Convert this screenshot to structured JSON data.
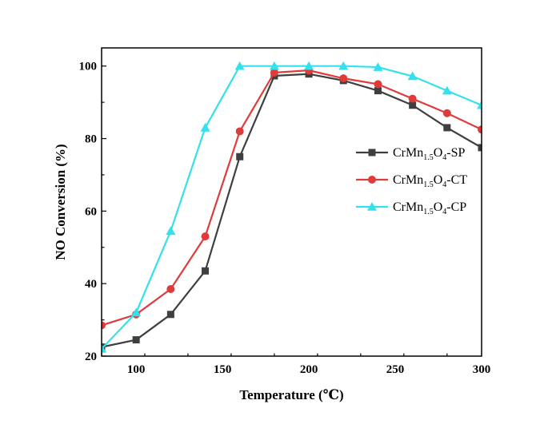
{
  "chart_data": {
    "type": "line",
    "xlabel": "Temperature (℃)",
    "ylabel": "NO Conversion (%)",
    "xlim": [
      80,
      300
    ],
    "ylim": [
      20,
      105
    ],
    "xticks": [
      100,
      150,
      200,
      250,
      300
    ],
    "yticks": [
      20,
      40,
      60,
      80,
      100
    ],
    "x": [
      80,
      100,
      120,
      140,
      160,
      180,
      200,
      220,
      240,
      260,
      280,
      300
    ],
    "legend_position": "right",
    "grid": false,
    "series": [
      {
        "name": "CrMn1.5O4-SP",
        "name_parts": [
          "CrMn",
          "1.5",
          "O",
          "4",
          "-SP"
        ],
        "color": "#3f3f3f",
        "marker": "square",
        "values": [
          22.5,
          24.5,
          31.5,
          43.5,
          75,
          97.3,
          97.8,
          96,
          93.2,
          89.2,
          83,
          77.5
        ]
      },
      {
        "name": "CrMn1.5O4-CT",
        "name_parts": [
          "CrMn",
          "1.5",
          "O",
          "4",
          "-CT"
        ],
        "color": "#e03b3b",
        "marker": "circle",
        "values": [
          28.5,
          31.5,
          38.5,
          53,
          82,
          98.2,
          98.8,
          96.6,
          95,
          91,
          87,
          82.5
        ]
      },
      {
        "name": "CrMn1.5O4-CP",
        "name_parts": [
          "CrMn",
          "1.5",
          "O",
          "4",
          "-CP"
        ],
        "color": "#33e1ec",
        "marker": "triangle",
        "values": [
          22,
          32,
          54.5,
          83,
          100,
          100,
          100,
          100,
          99.7,
          97.2,
          93.2,
          89.2
        ]
      }
    ]
  }
}
